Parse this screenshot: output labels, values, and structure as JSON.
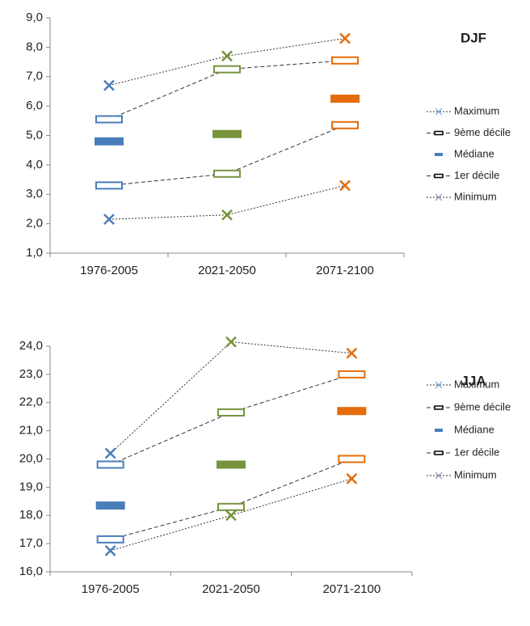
{
  "chart_data": [
    {
      "type": "range",
      "title": "DJF",
      "categories": [
        "1976-2005",
        "2021-2050",
        "2071-2100"
      ],
      "category_colors": [
        "#4a7ebb",
        "#77933c",
        "#e46c0a"
      ],
      "series": [
        {
          "name": "Maximum",
          "marker": "cross",
          "line": "dotted",
          "color": "#8fb4e3",
          "values": [
            6.7,
            7.7,
            8.3
          ]
        },
        {
          "name": "9ème décile",
          "marker": "hollow",
          "line": "dashed",
          "color": "#000000",
          "values": [
            5.55,
            7.25,
            7.55
          ]
        },
        {
          "name": "Médiane",
          "marker": "filled",
          "line": "none",
          "color": "#4a7ebb",
          "values": [
            4.8,
            5.05,
            6.25
          ]
        },
        {
          "name": "1er décile",
          "marker": "hollow",
          "line": "dashed",
          "color": "#000000",
          "values": [
            3.3,
            3.7,
            5.35
          ]
        },
        {
          "name": "Minimum",
          "marker": "cross",
          "line": "dotted",
          "color": "#b3a2c7",
          "values": [
            2.15,
            2.3,
            3.3
          ]
        }
      ],
      "ylim": [
        1,
        9
      ],
      "yticks": [
        {
          "value": 1,
          "label": "1,0"
        },
        {
          "value": 2,
          "label": "2,0"
        },
        {
          "value": 3,
          "label": "3,0"
        },
        {
          "value": 4,
          "label": "4,0"
        },
        {
          "value": 5,
          "label": "5,0"
        },
        {
          "value": 6,
          "label": "6,0"
        },
        {
          "value": 7,
          "label": "7,0"
        },
        {
          "value": 8,
          "label": "8,0"
        },
        {
          "value": 9,
          "label": "9,0"
        }
      ]
    },
    {
      "type": "range",
      "title": "JJA",
      "categories": [
        "1976-2005",
        "2021-2050",
        "2071-2100"
      ],
      "category_colors": [
        "#4a7ebb",
        "#77933c",
        "#e46c0a"
      ],
      "series": [
        {
          "name": "Maximum",
          "marker": "cross",
          "line": "dotted",
          "color": "#8fb4e3",
          "values": [
            20.2,
            24.15,
            23.75
          ]
        },
        {
          "name": "9ème décile",
          "marker": "hollow",
          "line": "dashed",
          "color": "#000000",
          "values": [
            19.8,
            21.65,
            23.0
          ]
        },
        {
          "name": "Médiane",
          "marker": "filled",
          "line": "none",
          "color": "#4a7ebb",
          "values": [
            18.35,
            19.8,
            21.7
          ]
        },
        {
          "name": "1er décile",
          "marker": "hollow",
          "line": "dashed",
          "color": "#000000",
          "values": [
            17.15,
            18.3,
            20.0
          ]
        },
        {
          "name": "Minimum",
          "marker": "cross",
          "line": "dotted",
          "color": "#b3a2c7",
          "values": [
            16.75,
            18.0,
            19.3
          ]
        }
      ],
      "ylim": [
        16,
        24
      ],
      "yticks": [
        {
          "value": 16,
          "label": "16,0"
        },
        {
          "value": 17,
          "label": "17,0"
        },
        {
          "value": 18,
          "label": "18,0"
        },
        {
          "value": 19,
          "label": "19,0"
        },
        {
          "value": 20,
          "label": "20,0"
        },
        {
          "value": 21,
          "label": "21,0"
        },
        {
          "value": 22,
          "label": "22,0"
        },
        {
          "value": 23,
          "label": "23,0"
        },
        {
          "value": 24,
          "label": "24,0"
        }
      ]
    }
  ]
}
